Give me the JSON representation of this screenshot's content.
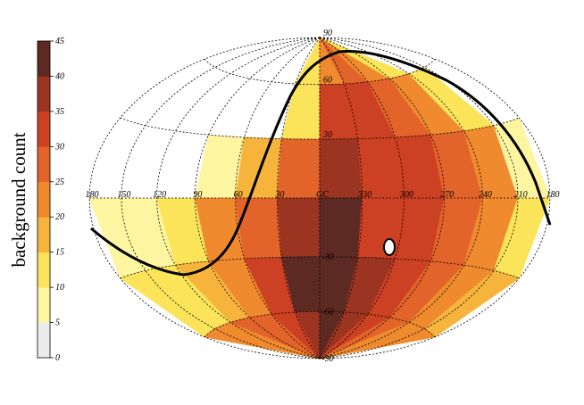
{
  "chart_data": {
    "type": "skymap",
    "colorbar_label": "background count",
    "colorbar_lim": [
      0,
      45
    ],
    "colorbar_ticks": [
      0,
      5,
      10,
      15,
      20,
      25,
      30,
      35,
      40,
      45
    ],
    "colors": [
      "#ececec",
      "#fdf5a0",
      "#fbe45a",
      "#f7b43c",
      "#ef8a2e",
      "#e2642a",
      "#cc4024",
      "#9c3422",
      "#5c2a22"
    ],
    "xlim": [
      180,
      -180
    ],
    "ylim": [
      -90,
      90
    ],
    "xticks": [
      180,
      150,
      120,
      90,
      60,
      30,
      {
        "value": 0,
        "label": "GC"
      },
      {
        "value": -30,
        "label": "330"
      },
      {
        "value": -60,
        "label": "300"
      },
      {
        "value": -90,
        "label": "270"
      },
      {
        "value": -120,
        "label": "240"
      },
      {
        "value": -150,
        "label": "210"
      },
      {
        "value": -180,
        "label": "180"
      }
    ],
    "yticks": [
      90,
      60,
      30,
      -30,
      -60,
      -90
    ],
    "lon_edges": [
      180,
      150,
      120,
      90,
      60,
      30,
      0,
      -30,
      -60,
      -90,
      -120,
      -150,
      -180
    ],
    "lat_edges": [
      90,
      60,
      30,
      0,
      -30,
      -60,
      -90
    ],
    "values": [
      [
        null,
        null,
        null,
        null,
        null,
        10,
        20,
        25,
        20,
        12,
        null,
        null
      ],
      [
        null,
        null,
        null,
        null,
        null,
        12,
        30,
        30,
        28,
        22,
        10,
        null
      ],
      [
        null,
        null,
        null,
        5,
        15,
        28,
        36,
        33,
        30,
        28,
        20,
        6
      ],
      [
        6,
        5,
        12,
        20,
        28,
        38,
        42,
        33,
        32,
        28,
        22,
        12
      ],
      [
        10,
        12,
        15,
        22,
        30,
        40,
        42,
        35,
        32,
        28,
        22,
        15
      ],
      [
        20,
        22,
        25,
        28,
        32,
        38,
        40,
        36,
        32,
        28,
        24,
        20
      ]
    ]
  }
}
